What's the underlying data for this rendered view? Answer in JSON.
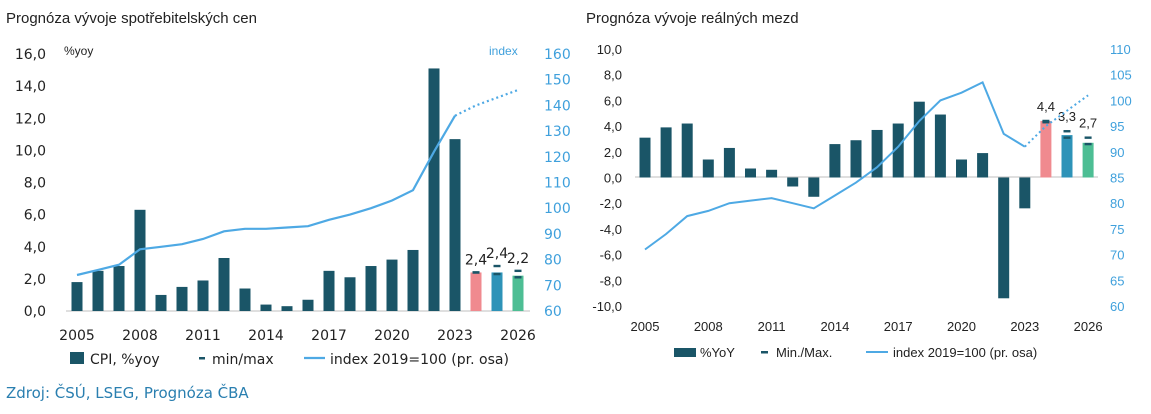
{
  "colors": {
    "bar": "#1a5567",
    "index": "#4ea9e4",
    "fc1": "#f08a8f",
    "fc2": "#2e93b8",
    "fc3": "#4dbe94",
    "minmax": "#1a5567"
  },
  "source": "Zdroj: ČSÚ, LSEG, Prognóza ČBA",
  "chart_data": [
    {
      "type": "bar",
      "title": "Prognóza vývoje spotřebitelských cen",
      "ylabel": "%yoy",
      "y2label": "index",
      "ylim": [
        0,
        16
      ],
      "y2lim": [
        60,
        160
      ],
      "yticks": [
        "0,0",
        "2,0",
        "4,0",
        "6,0",
        "8,0",
        "10,0",
        "12,0",
        "14,0",
        "16,0"
      ],
      "y2ticks": [
        "60",
        "70",
        "80",
        "90",
        "100",
        "110",
        "120",
        "130",
        "140",
        "150",
        "160"
      ],
      "xticks": [
        "2005",
        "2008",
        "2011",
        "2014",
        "2017",
        "2020",
        "2023",
        "2026"
      ],
      "years": [
        2005,
        2006,
        2007,
        2008,
        2009,
        2010,
        2011,
        2012,
        2013,
        2014,
        2015,
        2016,
        2017,
        2018,
        2019,
        2020,
        2021,
        2022,
        2023,
        2024,
        2025,
        2026
      ],
      "cpi": [
        1.8,
        2.5,
        2.8,
        6.3,
        1.0,
        1.5,
        1.9,
        3.3,
        1.4,
        0.4,
        0.3,
        0.7,
        2.5,
        2.1,
        2.8,
        3.2,
        3.8,
        15.1,
        10.7,
        2.4,
        2.4,
        2.2
      ],
      "forecast_labels": [
        "2,4",
        "2,4",
        "2,2"
      ],
      "minmax": [
        [
          2.4,
          2.4
        ],
        [
          2.3,
          2.8
        ],
        [
          2.1,
          2.5
        ]
      ],
      "index": [
        74,
        76,
        78,
        84,
        85,
        86,
        88,
        91,
        92,
        92,
        92.5,
        93,
        95.5,
        97.5,
        100,
        103,
        107,
        122,
        136,
        140,
        143,
        146
      ],
      "index_forecast_from": 19,
      "legend": [
        "CPI, %yoy",
        "min/max",
        "index 2019=100 (pr. osa)"
      ]
    },
    {
      "type": "bar",
      "title": "Prognóza vývoje reálných mezd",
      "ylim": [
        -10,
        10
      ],
      "y2lim": [
        60,
        110
      ],
      "yticks": [
        "-10,0",
        "-8,0",
        "-6,0",
        "-4,0",
        "-2,0",
        "0,0",
        "2,0",
        "4,0",
        "6,0",
        "8,0",
        "10,0"
      ],
      "y2ticks": [
        "60",
        "65",
        "70",
        "75",
        "80",
        "85",
        "90",
        "95",
        "100",
        "105",
        "110"
      ],
      "xticks": [
        "2005",
        "2008",
        "2011",
        "2014",
        "2017",
        "2020",
        "2023",
        "2026"
      ],
      "years": [
        2005,
        2006,
        2007,
        2008,
        2009,
        2010,
        2011,
        2012,
        2013,
        2014,
        2015,
        2016,
        2017,
        2018,
        2019,
        2020,
        2021,
        2022,
        2023,
        2024,
        2025,
        2026
      ],
      "wages": [
        3.1,
        3.9,
        4.2,
        1.4,
        2.3,
        0.7,
        0.6,
        -0.7,
        -1.5,
        2.6,
        2.9,
        3.7,
        4.2,
        5.9,
        4.9,
        1.4,
        1.9,
        -9.4,
        -2.4,
        4.4,
        3.3,
        2.7
      ],
      "forecast_labels": [
        "4,4",
        "3,3",
        "2,7"
      ],
      "minmax": [
        [
          4.3,
          4.4
        ],
        [
          3.1,
          3.6
        ],
        [
          2.6,
          3.1
        ]
      ],
      "index": [
        71,
        74,
        77.5,
        78.5,
        80,
        80.5,
        81,
        80,
        79,
        81.5,
        84,
        87,
        91,
        96,
        100,
        101.5,
        103.5,
        93.5,
        91,
        95,
        98,
        101
      ],
      "index_forecast_from": 19,
      "legend": [
        "%YoY",
        "Min./Max.",
        "index 2019=100 (pr. osa)"
      ]
    }
  ]
}
